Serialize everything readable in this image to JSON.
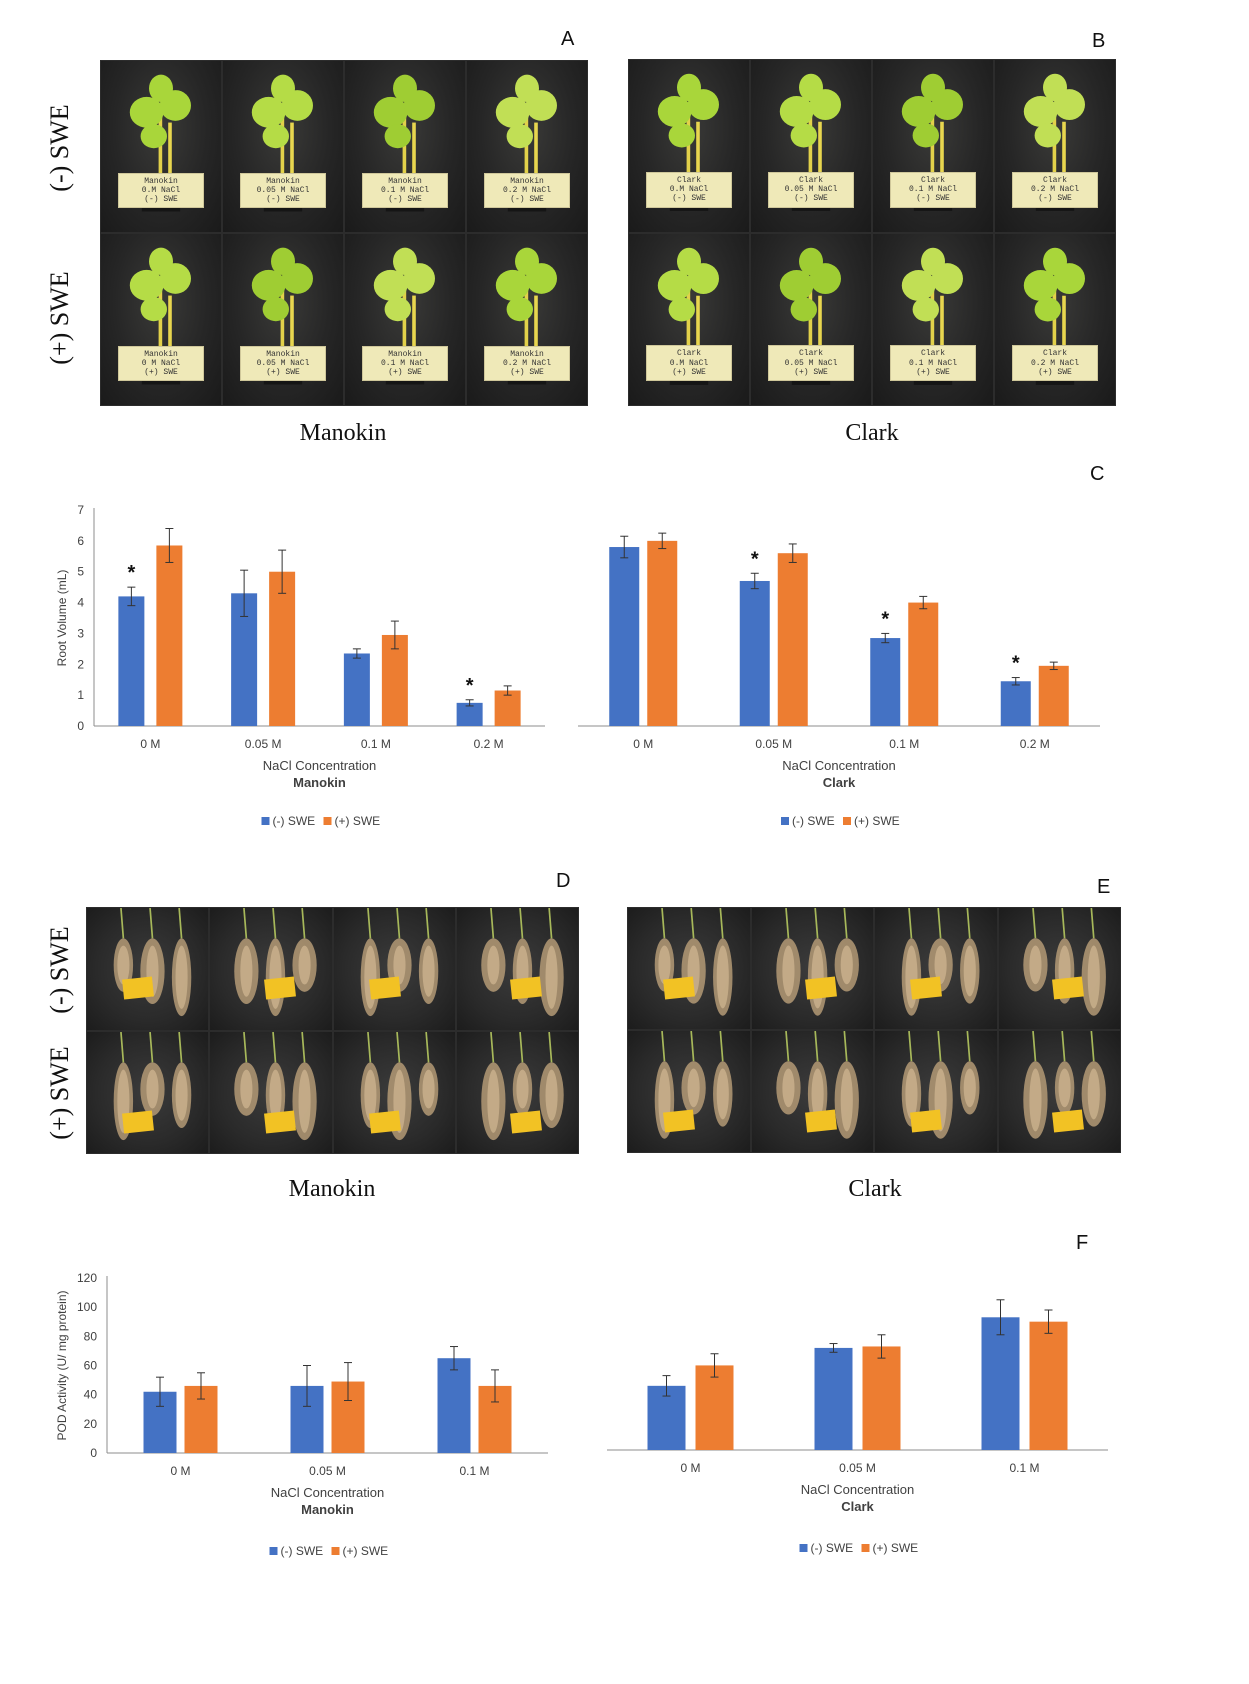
{
  "panel_letters": {
    "a": "A",
    "b": "B",
    "c": "C",
    "d": "D",
    "e": "E",
    "f": "F"
  },
  "row_labels": {
    "minus": "(-) SWE",
    "plus": "(+) SWE"
  },
  "cultivars": {
    "manokin": "Manokin",
    "clark": "Clark"
  },
  "plant_photos": {
    "manokin": {
      "minus": [
        "Manokin\n0.M NaCl\n(-) SWE",
        "Manokin\n0.05 M NaCl\n(-) SWE",
        "Manokin\n0.1 M NaCl\n(-) SWE",
        "Manokin\n0.2 M NaCl\n(-) SWE"
      ],
      "plus": [
        "Manokin\n0 M NaCl\n(+) SWE",
        "Manokin\n0.05 M NaCl\n(+) SWE",
        "Manokin\n0.1 M NaCl\n(+) SWE",
        "Manokin\n0.2 M NaCl\n(+) SWE"
      ]
    },
    "clark": {
      "minus": [
        "Clark\n0.M NaCl\n(-) SWE",
        "Clark\n0.05 M NaCl\n(-) SWE",
        "Clark\n0.1 M NaCl\n(-) SWE",
        "Clark\n0.2 M NaCl\n(-) SWE"
      ],
      "plus": [
        "Clark\n0.M NaCl\n(+) SWE",
        "Clark\n0.05 M NaCl\n(+) SWE",
        "Clark\n0.1 M NaCl\n(+) SWE",
        "Clark\n0.2 M NaCl\n(+) SWE"
      ]
    }
  },
  "colors": {
    "minus": "#4472c4",
    "plus": "#ed7d31",
    "axis": "#8c8c8c",
    "text": "#404040"
  },
  "chart_data": [
    {
      "id": "C-manokin",
      "type": "bar",
      "categories": [
        "0 M",
        "0.05 M",
        "0.1 M",
        "0.2 M"
      ],
      "series": [
        {
          "name": "(-) SWE",
          "values": [
            4.2,
            4.3,
            2.35,
            0.75
          ],
          "errors": [
            0.3,
            0.75,
            0.15,
            0.1
          ]
        },
        {
          "name": "(+) SWE",
          "values": [
            5.85,
            5.0,
            2.95,
            1.15
          ],
          "errors": [
            0.55,
            0.7,
            0.45,
            0.15
          ]
        }
      ],
      "ylim": [
        0,
        7
      ],
      "yticks": [
        0,
        1,
        2,
        3,
        4,
        5,
        6,
        7
      ],
      "ylabel": "Root Volume (mL)",
      "xlabel": "NaCl Concentration",
      "subtitle": "Manokin",
      "significance": [
        "*",
        "",
        "",
        "*"
      ],
      "legend": "bottom"
    },
    {
      "id": "C-clark",
      "type": "bar",
      "categories": [
        "0 M",
        "0.05 M",
        "0.1 M",
        "0.2 M"
      ],
      "series": [
        {
          "name": "(-) SWE",
          "values": [
            5.8,
            4.7,
            2.85,
            1.45
          ],
          "errors": [
            0.35,
            0.25,
            0.15,
            0.12
          ]
        },
        {
          "name": "(+) SWE",
          "values": [
            6.0,
            5.6,
            4.0,
            1.95
          ],
          "errors": [
            0.25,
            0.3,
            0.2,
            0.12
          ]
        }
      ],
      "ylim": [
        0,
        7
      ],
      "ylabel": "",
      "xlabel": "NaCl Concentration",
      "subtitle": "Clark",
      "significance": [
        "",
        "*",
        "*",
        "*"
      ],
      "legend": "bottom"
    },
    {
      "id": "F-manokin",
      "type": "bar",
      "categories": [
        "0 M",
        "0.05 M",
        "0.1 M"
      ],
      "series": [
        {
          "name": "(-) SWE",
          "values": [
            42,
            46,
            65
          ],
          "errors": [
            10,
            14,
            8
          ]
        },
        {
          "name": "(+) SWE",
          "values": [
            46,
            49,
            46
          ],
          "errors": [
            9,
            13,
            11
          ]
        }
      ],
      "ylim": [
        0,
        120
      ],
      "yticks": [
        0,
        20,
        40,
        60,
        80,
        100,
        120
      ],
      "ylabel": "POD Activity (U/ mg protein)",
      "xlabel": "NaCl Concentration",
      "subtitle": "Manokin",
      "legend": "bottom"
    },
    {
      "id": "F-clark",
      "type": "bar",
      "categories": [
        "0 M",
        "0.05 M",
        "0.1 M"
      ],
      "series": [
        {
          "name": "(-) SWE",
          "values": [
            44,
            70,
            91
          ],
          "errors": [
            7,
            3,
            12
          ]
        },
        {
          "name": "(+) SWE",
          "values": [
            58,
            71,
            88
          ],
          "errors": [
            8,
            8,
            8
          ]
        }
      ],
      "ylim": [
        0,
        120
      ],
      "ylabel": "",
      "xlabel": "NaCl Concentration",
      "subtitle": "Clark",
      "legend": "bottom"
    }
  ]
}
